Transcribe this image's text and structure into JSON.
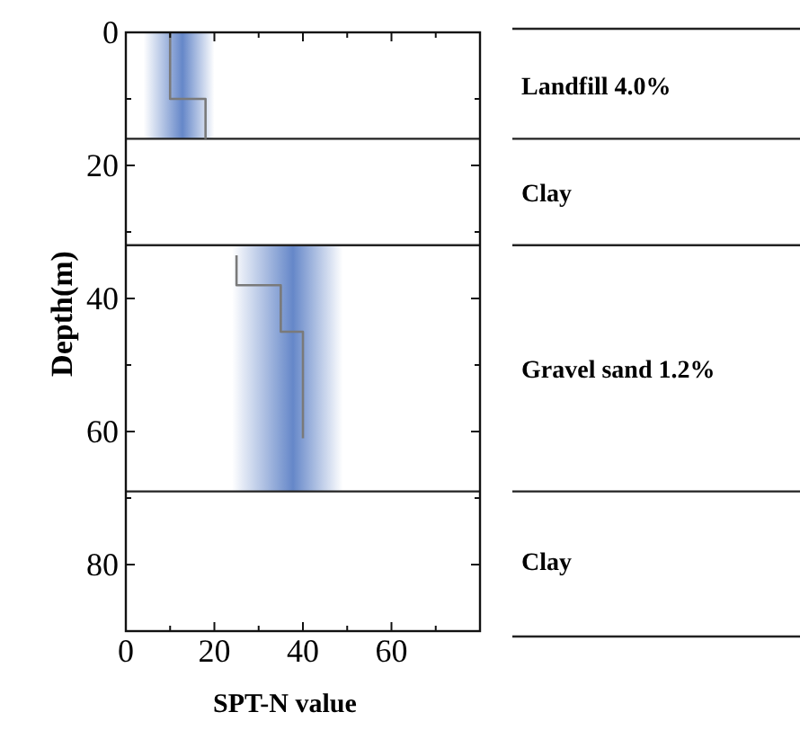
{
  "chart_data": {
    "type": "step",
    "orientation": "horizontal",
    "xlabel": "SPT-N value",
    "ylabel": "Depth(m)",
    "xlim": [
      0,
      80
    ],
    "xticks": [
      0,
      {
        "value": 10,
        "label": null
      },
      20,
      {
        "value": 30,
        "label": null
      },
      40,
      {
        "value": 50,
        "label": null
      },
      60,
      {
        "value": 70,
        "label": null
      }
    ],
    "ylim": [
      90,
      0
    ],
    "yticks": [
      0,
      {
        "value": 10,
        "label": null
      },
      20,
      {
        "value": 30,
        "label": null
      },
      40,
      {
        "value": 50,
        "label": null
      },
      60,
      {
        "value": 70,
        "label": null
      },
      80
    ],
    "series": [
      {
        "color": "#7a7a7a",
        "x": [
          0,
          9,
          10,
          16
        ],
        "values": [
          10,
          10,
          18,
          18
        ],
        "lower": [
          4,
          4,
          4,
          4
        ],
        "upper": [
          20,
          20,
          20,
          20
        ]
      },
      {
        "color": "#7a7a7a",
        "x": [
          32,
          33.5,
          37,
          38,
          44,
          45,
          61,
          69
        ],
        "values": [
          null,
          25,
          25,
          35,
          35,
          40,
          40,
          null
        ],
        "lower": [
          24,
          24,
          24,
          24,
          24,
          24,
          24,
          24
        ],
        "upper": [
          49,
          49,
          49,
          49,
          49,
          49,
          49,
          49
        ]
      }
    ],
    "ref_lines": [
      {
        "axis": "y",
        "value": 16
      },
      {
        "axis": "y",
        "value": 32
      },
      {
        "axis": "y",
        "value": 69
      }
    ],
    "annotations": [
      "Landfill 4.0%",
      "Clay",
      "Gravel sand 1.2%",
      "Clay"
    ],
    "grid": false
  }
}
